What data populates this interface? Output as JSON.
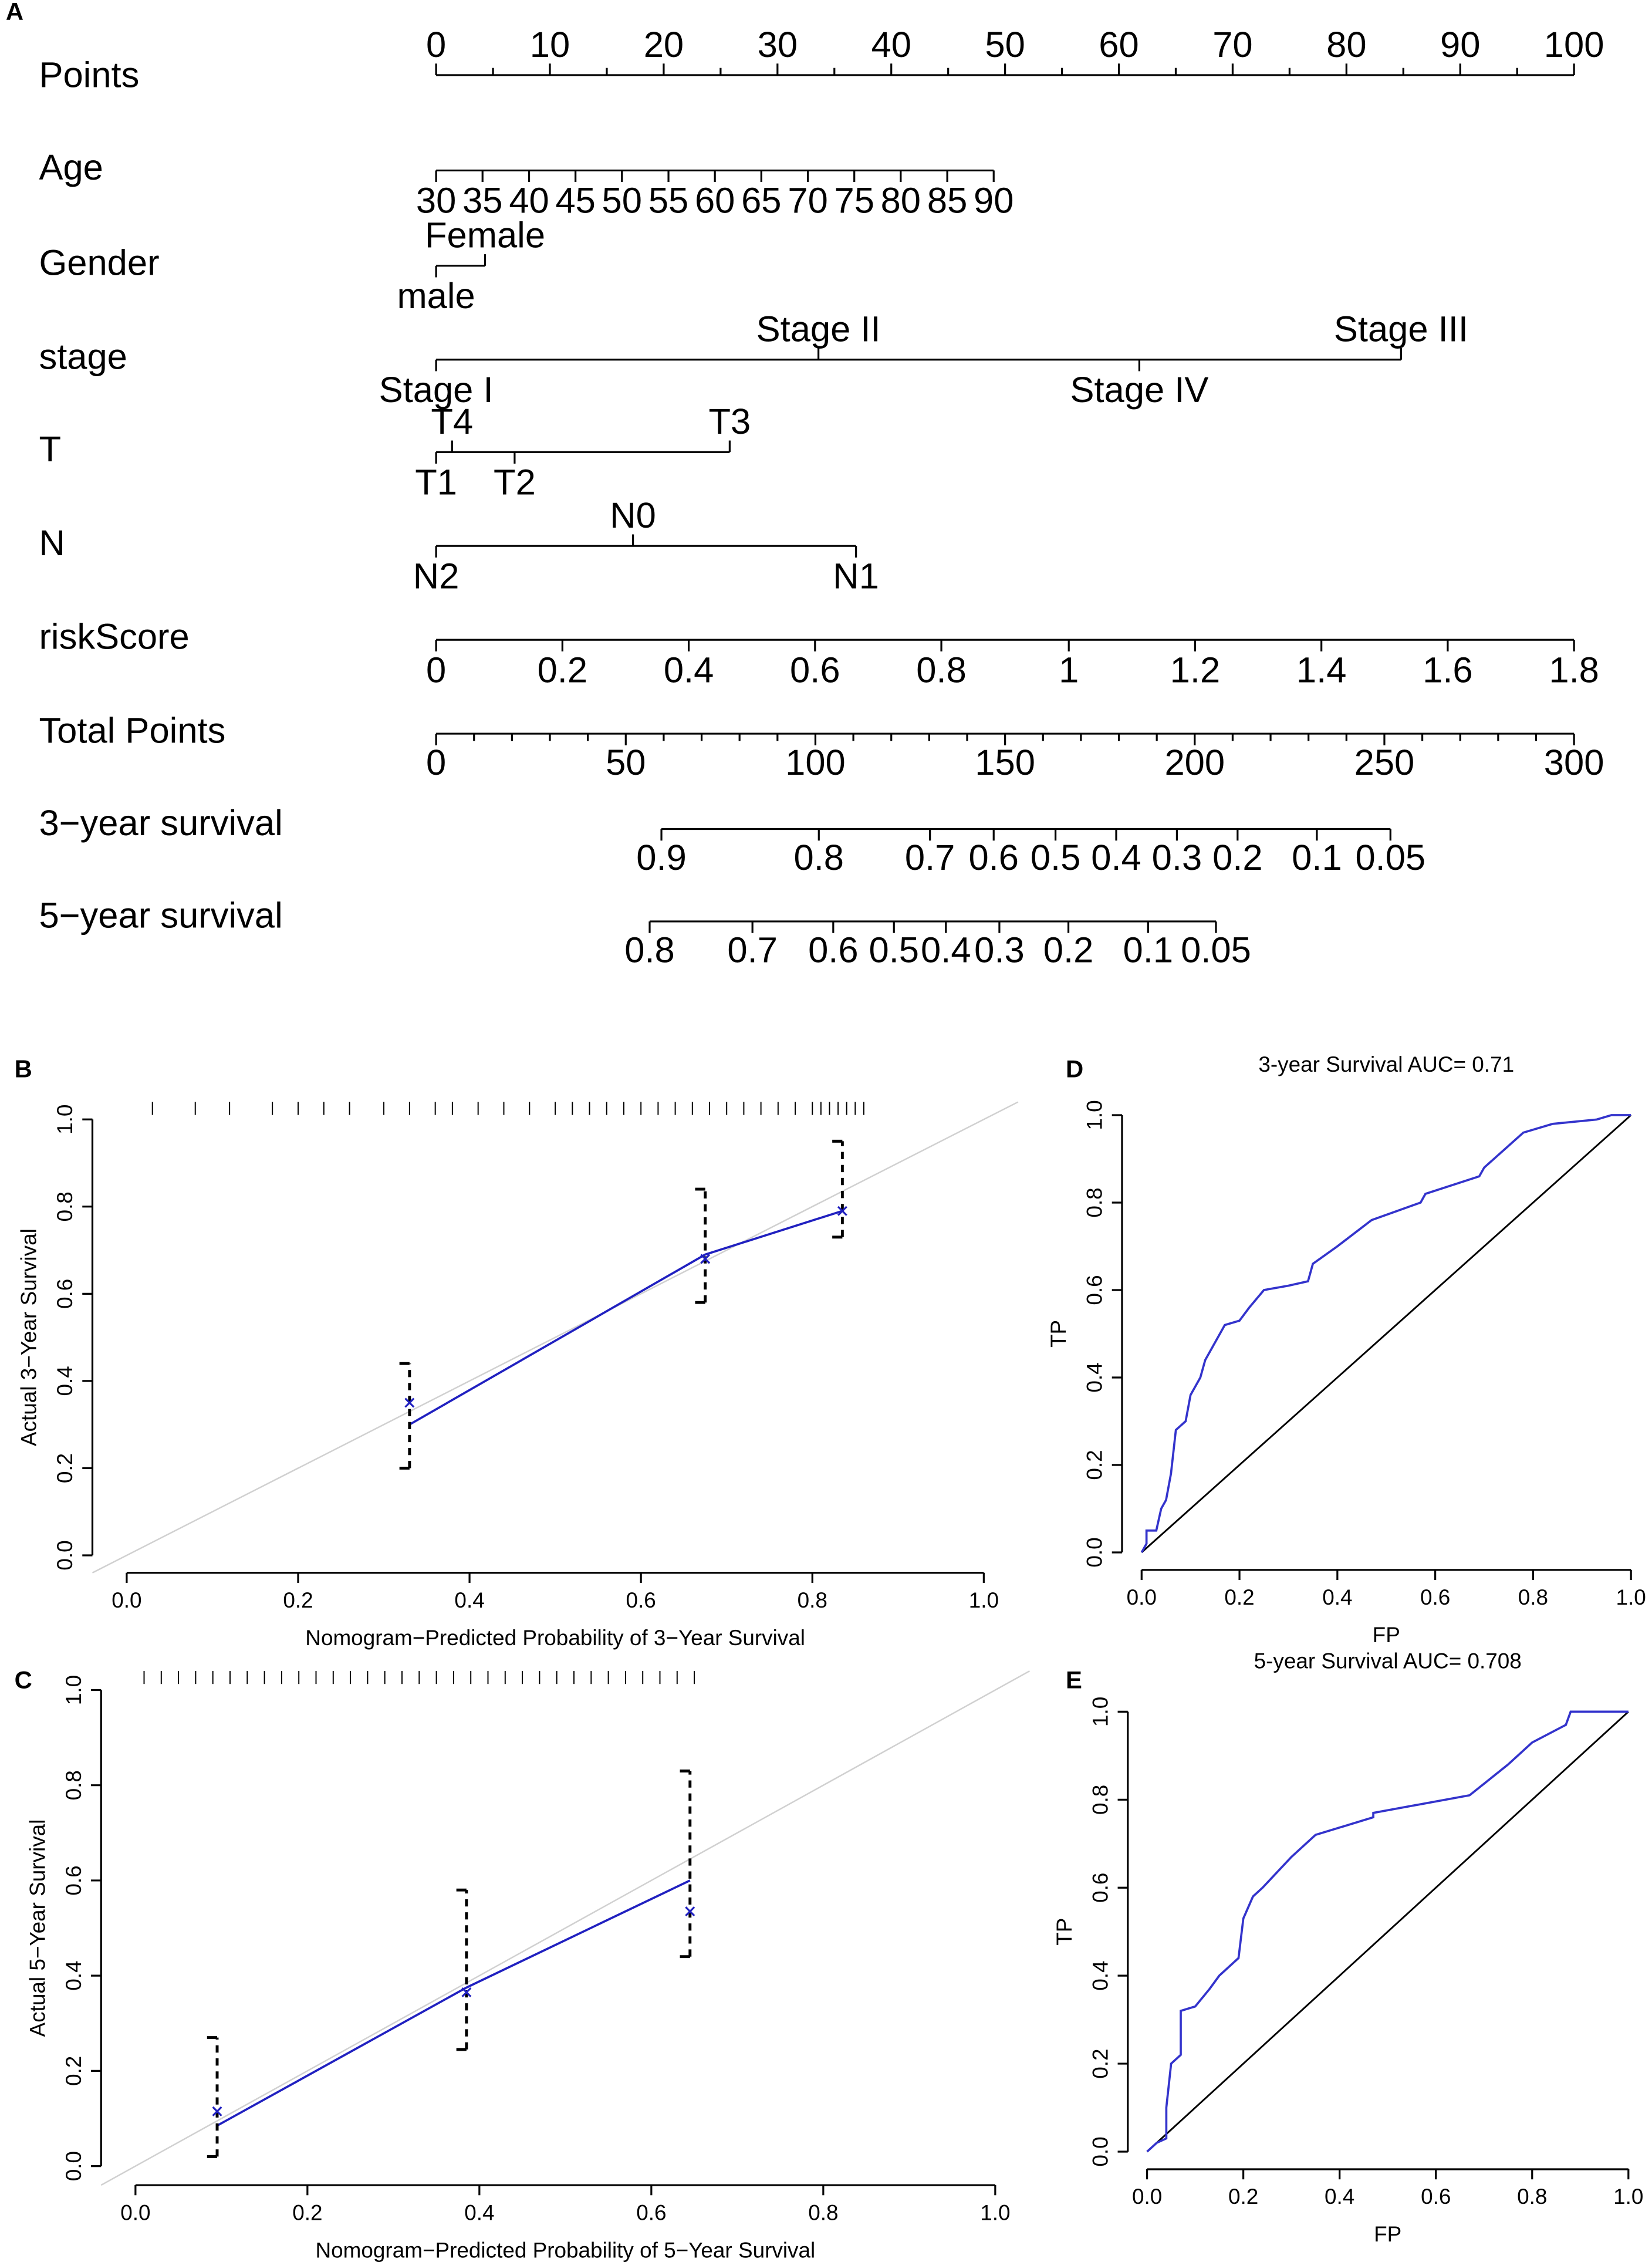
{
  "chart_data": [
    {
      "type": "nomogram",
      "panel": "A",
      "points_axis": {
        "name": "Points",
        "xlim": [
          0,
          100
        ],
        "xticks": [
          0,
          10,
          20,
          30,
          40,
          50,
          60,
          70,
          80,
          90,
          100
        ],
        "minor_xticks": [
          5,
          15,
          25,
          35,
          45,
          55,
          65,
          75,
          85,
          95
        ]
      },
      "scales": [
        {
          "name": "Age",
          "labels": [
            30,
            35,
            40,
            45,
            50,
            55,
            60,
            65,
            70,
            75,
            80,
            85,
            90
          ],
          "points": [
            0,
            4.08,
            8.17,
            12.25,
            16.33,
            20.42,
            24.5,
            28.58,
            32.67,
            36.75,
            40.83,
            44.92,
            49
          ]
        },
        {
          "name": "Gender",
          "labels": [
            "male",
            "Female"
          ],
          "points": [
            0,
            4.3
          ]
        },
        {
          "name": "stage",
          "labels": [
            "Stage I",
            "Stage II",
            "Stage III",
            "Stage IV"
          ],
          "points": [
            0,
            33.6,
            84.8,
            61.8
          ]
        },
        {
          "name": "T",
          "labels": [
            "T1",
            "T2",
            "T3",
            "T4"
          ],
          "points": [
            0,
            6.9,
            25.8,
            1.4
          ]
        },
        {
          "name": "N",
          "labels": [
            "N0",
            "N1",
            "N2"
          ],
          "points": [
            17.3,
            36.9,
            0
          ]
        },
        {
          "name": "riskScore",
          "labels": [
            0,
            0.2,
            0.4,
            0.6,
            0.8,
            1,
            1.2,
            1.4,
            1.6,
            1.8
          ],
          "points": [
            0,
            11.1,
            22.2,
            33.3,
            44.4,
            55.6,
            66.7,
            77.8,
            88.9,
            100
          ]
        }
      ],
      "total_axis": {
        "name": "Total Points",
        "xlim": [
          0,
          300
        ],
        "xticks": [
          0,
          50,
          100,
          150,
          200,
          250,
          300
        ],
        "minor_xticks": [
          10,
          20,
          30,
          40,
          60,
          70,
          80,
          90,
          110,
          120,
          130,
          140,
          160,
          170,
          180,
          190,
          210,
          220,
          230,
          240,
          260,
          270,
          280,
          290
        ]
      },
      "survival": [
        {
          "name": "3−year survival",
          "labels": [
            0.9,
            0.8,
            0.7,
            0.6,
            0.5,
            0.4,
            0.3,
            0.2,
            0.1,
            0.05
          ],
          "total_points": [
            59.4,
            100.9,
            130.2,
            147,
            163.3,
            179.3,
            195.3,
            211.3,
            232.2,
            251.6
          ]
        },
        {
          "name": "5−year survival",
          "labels": [
            0.8,
            0.7,
            0.6,
            0.5,
            0.4,
            0.3,
            0.2,
            0.1,
            0.05
          ],
          "total_points": [
            56.3,
            83.4,
            104.7,
            120.7,
            134.4,
            148.5,
            166.7,
            187.7,
            205.6
          ]
        }
      ]
    },
    {
      "type": "calibration",
      "panel": "B",
      "xlabel": "Nomogram−Predicted Probability of 3−Year Survival",
      "ylabel": "Actual 3−Year Survival",
      "xlim": [
        -0.04,
        1.04
      ],
      "ylim": [
        -0.04,
        1.04
      ],
      "xticks": [
        {
          "value": 0,
          "label": "0.0"
        },
        0.2,
        0.4,
        0.6,
        0.8,
        {
          "value": 1,
          "label": "1.0"
        }
      ],
      "yticks": [
        {
          "value": 0,
          "label": "0.0"
        },
        0.2,
        0.4,
        0.6,
        0.8,
        {
          "value": 1,
          "label": "1.0"
        }
      ],
      "x": [
        0.33,
        0.675,
        0.835
      ],
      "values": [
        0.35,
        0.68,
        0.79
      ],
      "lower": [
        0.2,
        0.58,
        0.73
      ],
      "upper": [
        0.44,
        0.84,
        0.95
      ],
      "line": {
        "x": [
          0.33,
          0.675,
          0.835
        ],
        "values": [
          0.3,
          0.69,
          0.79
        ]
      },
      "rug": [
        0.03,
        0.08,
        0.12,
        0.17,
        0.2,
        0.23,
        0.26,
        0.3,
        0.33,
        0.36,
        0.38,
        0.41,
        0.44,
        0.47,
        0.5,
        0.52,
        0.54,
        0.56,
        0.58,
        0.6,
        0.62,
        0.64,
        0.66,
        0.68,
        0.7,
        0.72,
        0.74,
        0.76,
        0.78,
        0.8,
        0.81,
        0.82,
        0.83,
        0.84,
        0.85,
        0.86
      ],
      "color": "#2020c0"
    },
    {
      "type": "calibration",
      "panel": "C",
      "xlabel": "Nomogram−Predicted Probability of 5−Year Survival",
      "ylabel": "Actual 5−Year Survival",
      "xlim": [
        -0.04,
        1.04
      ],
      "ylim": [
        -0.04,
        1.04
      ],
      "xticks": [
        {
          "value": 0,
          "label": "0.0"
        },
        0.2,
        0.4,
        0.6,
        0.8,
        {
          "value": 1,
          "label": "1.0"
        }
      ],
      "yticks": [
        {
          "value": 0,
          "label": "0.0"
        },
        0.2,
        0.4,
        0.6,
        0.8,
        {
          "value": 1,
          "label": "1.0"
        }
      ],
      "x": [
        0.095,
        0.385,
        0.645
      ],
      "values": [
        0.115,
        0.365,
        0.535
      ],
      "lower": [
        0.02,
        0.245,
        0.44
      ],
      "upper": [
        0.27,
        0.58,
        0.83
      ],
      "line": {
        "x": [
          0.095,
          0.385,
          0.645
        ],
        "values": [
          0.085,
          0.375,
          0.6
        ]
      },
      "rug": [
        0.01,
        0.03,
        0.05,
        0.07,
        0.09,
        0.11,
        0.13,
        0.15,
        0.17,
        0.19,
        0.21,
        0.23,
        0.25,
        0.27,
        0.29,
        0.31,
        0.33,
        0.35,
        0.37,
        0.39,
        0.41,
        0.43,
        0.45,
        0.47,
        0.49,
        0.51,
        0.53,
        0.55,
        0.57,
        0.59,
        0.61,
        0.63,
        0.65
      ],
      "color": "#2020c0"
    },
    {
      "type": "roc",
      "panel": "D",
      "title": "3-year Survival AUC= 0.71",
      "xlabel": "FP",
      "ylabel": "TP",
      "xlim": [
        -0.04,
        1.04
      ],
      "ylim": [
        -0.04,
        1.04
      ],
      "xticks": [
        {
          "value": 0,
          "label": "0.0"
        },
        0.2,
        0.4,
        0.6,
        0.8,
        {
          "value": 1,
          "label": "1.0"
        }
      ],
      "yticks": [
        {
          "value": 0,
          "label": "0.0"
        },
        0.2,
        0.4,
        0.6,
        0.8,
        {
          "value": 1,
          "label": "1.0"
        }
      ],
      "x": [
        0,
        0.01,
        0.01,
        0.03,
        0.04,
        0.05,
        0.06,
        0.07,
        0.09,
        0.1,
        0.12,
        0.13,
        0.15,
        0.17,
        0.2,
        0.22,
        0.25,
        0.3,
        0.34,
        0.35,
        0.4,
        0.47,
        0.52,
        0.57,
        0.58,
        0.69,
        0.7,
        0.75,
        0.78,
        0.84,
        0.93,
        0.96,
        1
      ],
      "values": [
        0,
        0.02,
        0.05,
        0.05,
        0.1,
        0.12,
        0.18,
        0.28,
        0.3,
        0.36,
        0.4,
        0.44,
        0.48,
        0.52,
        0.53,
        0.56,
        0.6,
        0.61,
        0.62,
        0.66,
        0.7,
        0.76,
        0.78,
        0.8,
        0.82,
        0.86,
        0.88,
        0.93,
        0.96,
        0.98,
        0.99,
        1,
        1
      ],
      "color": "#3333cc"
    },
    {
      "type": "roc",
      "panel": "E",
      "title": "5-year Survival AUC= 0.708",
      "xlabel": "FP",
      "ylabel": "TP",
      "xlim": [
        -0.04,
        1.04
      ],
      "ylim": [
        -0.04,
        1.04
      ],
      "xticks": [
        {
          "value": 0,
          "label": "0.0"
        },
        0.2,
        0.4,
        0.6,
        0.8,
        {
          "value": 1,
          "label": "1.0"
        }
      ],
      "yticks": [
        {
          "value": 0,
          "label": "0.0"
        },
        0.2,
        0.4,
        0.6,
        0.8,
        {
          "value": 1,
          "label": "1.0"
        }
      ],
      "x": [
        0,
        0.02,
        0.04,
        0.04,
        0.05,
        0.07,
        0.07,
        0.1,
        0.13,
        0.15,
        0.17,
        0.19,
        0.2,
        0.22,
        0.24,
        0.3,
        0.35,
        0.47,
        0.47,
        0.67,
        0.75,
        0.8,
        0.87,
        0.88,
        0.96,
        1
      ],
      "values": [
        0,
        0.02,
        0.03,
        0.1,
        0.2,
        0.22,
        0.32,
        0.33,
        0.37,
        0.4,
        0.42,
        0.44,
        0.53,
        0.58,
        0.6,
        0.67,
        0.72,
        0.76,
        0.77,
        0.81,
        0.88,
        0.93,
        0.97,
        1,
        1,
        1
      ],
      "color": "#3333cc"
    }
  ]
}
